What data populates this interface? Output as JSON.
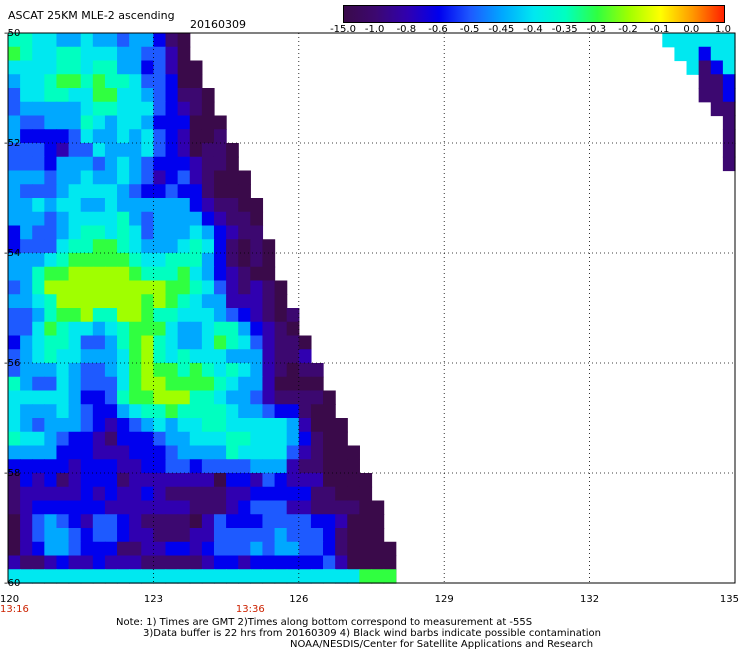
{
  "header": {
    "title": "ASCAT 25KM MLE-2 ascending",
    "date": "20160309"
  },
  "colorbar": {
    "labels": [
      "-15.0",
      "-1.0",
      "-0.8",
      "-0.6",
      "-0.5",
      "-0.45",
      "-0.4",
      "-0.35",
      "-0.3",
      "-0.2",
      "-0.1",
      "0.0",
      "1.0"
    ],
    "colors": [
      "#3a0a4a",
      "#3c0870",
      "#3000b0",
      "#0000ee",
      "#1e5aff",
      "#00a8ff",
      "#00e8f0",
      "#00ffc0",
      "#30ff40",
      "#a0ff00",
      "#ffff00",
      "#ff9900",
      "#ff2000"
    ]
  },
  "chart_data": {
    "type": "heatmap",
    "title": "ASCAT 25KM MLE-2 ascending",
    "subtitle": "20160309",
    "xlabel": "",
    "ylabel": "",
    "xlim": [
      120,
      135
    ],
    "ylim": [
      -60,
      -50
    ],
    "x_ticks": [
      "120",
      "123",
      "126",
      "129",
      "132",
      "135"
    ],
    "y_ticks": [
      "-50",
      "-52",
      "-54",
      "-56",
      "-58",
      "-60"
    ],
    "grid": true,
    "cell_size_deg": 0.25,
    "swath_left": {
      "x_start": 120,
      "east_edge_by_row": [
        [
          -50,
          123.5
        ],
        [
          -51,
          124.0
        ],
        [
          -52,
          124.5
        ],
        [
          -53,
          125.0
        ],
        [
          -54,
          125.3
        ],
        [
          -55,
          125.8
        ],
        [
          -56,
          126.3
        ],
        [
          -57,
          126.8
        ],
        [
          -58,
          127.3
        ],
        [
          -59,
          127.7
        ],
        [
          -60,
          128.0
        ]
      ],
      "field": "MLE-2 values shown by colorbar; predominantly -0.45 to -0.3 (green/cyan) in interior, -0.8 to -15.0 (blue/purple) along eastern edge and south-west"
    },
    "swath_right": {
      "x_end": 135,
      "west_edge_by_row": [
        [
          -50.0,
          133.3
        ],
        [
          -51.0,
          134.3
        ],
        [
          -52.0,
          134.85
        ]
      ],
      "field": "mixed -0.4 (cyan) at top transitioning to -15.0 (purple) at lower edge"
    },
    "times": [
      {
        "lon": 120,
        "label": "13:16"
      },
      {
        "lon": 125,
        "label": "13:36"
      }
    ]
  },
  "notes": {
    "line1": "Note: 1) Times are GMT 2)Times along bottom correspond to measurement at -55S",
    "line2": "3)Data buffer is 22 hrs from 20160309 4) Black wind barbs indicate possible contamination",
    "line3": "NOAA/NESDIS/Center for Satellite Applications and Research"
  }
}
